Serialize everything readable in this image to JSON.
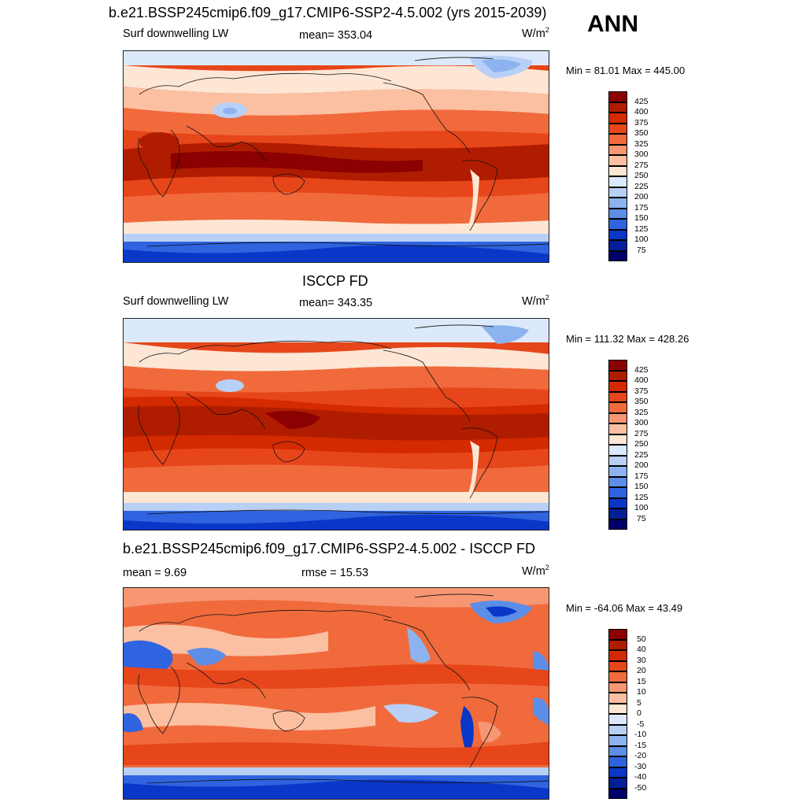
{
  "header": {
    "title": "b.e21.BSSP245cmip6.f09_g17.CMIP6-SSP2-4.5.002 (yrs 2015-2039)",
    "season": "ANN"
  },
  "panels": [
    {
      "variable": "Surf downwelling LW",
      "stat": "mean= 353.04",
      "units_base": "W/m",
      "units_exp": "2",
      "minmax": "Min =  81.01 Max = 445.00",
      "levels": [
        "425",
        "400",
        "375",
        "350",
        "325",
        "300",
        "275",
        "250",
        "225",
        "200",
        "175",
        "150",
        "125",
        "100",
        "75"
      ],
      "colors": [
        "#8b0000",
        "#b01c00",
        "#d42a00",
        "#e6461a",
        "#f06a3c",
        "#f69672",
        "#fbbfa2",
        "#fde6d4",
        "#dce9fa",
        "#b8d0f5",
        "#8cb3f0",
        "#5c8ee8",
        "#2f63df",
        "#0b37c8",
        "#031f98",
        "#00006a"
      ]
    },
    {
      "title": "ISCCP FD",
      "variable": "Surf downwelling LW",
      "stat": "mean= 343.35",
      "units_base": "W/m",
      "units_exp": "2",
      "minmax": "Min = 111.32 Max = 428.26",
      "levels": [
        "425",
        "400",
        "375",
        "350",
        "325",
        "300",
        "275",
        "250",
        "225",
        "200",
        "175",
        "150",
        "125",
        "100",
        "75"
      ],
      "colors": [
        "#8b0000",
        "#b01c00",
        "#d42a00",
        "#e6461a",
        "#f06a3c",
        "#f69672",
        "#fbbfa2",
        "#fde6d4",
        "#dce9fa",
        "#b8d0f5",
        "#8cb3f0",
        "#5c8ee8",
        "#2f63df",
        "#0b37c8",
        "#031f98",
        "#00006a"
      ]
    },
    {
      "title": "b.e21.BSSP245cmip6.f09_g17.CMIP6-SSP2-4.5.002 - ISCCP FD",
      "stat": "mean =   9.69",
      "stat2": "rmse =  15.53",
      "units_base": "W/m",
      "units_exp": "2",
      "minmax": "Min = -64.06 Max =  43.49",
      "levels": [
        "50",
        "40",
        "30",
        "20",
        "15",
        "10",
        "5",
        "0",
        "-5",
        "-10",
        "-15",
        "-20",
        "-30",
        "-40",
        "-50"
      ],
      "colors": [
        "#8b0000",
        "#b01c00",
        "#d42a00",
        "#e6461a",
        "#f06a3c",
        "#f69672",
        "#fbbfa2",
        "#fde6d4",
        "#dce9fa",
        "#b8d0f5",
        "#8cb3f0",
        "#5c8ee8",
        "#2f63df",
        "#0b37c8",
        "#031f98",
        "#00006a"
      ]
    }
  ]
}
